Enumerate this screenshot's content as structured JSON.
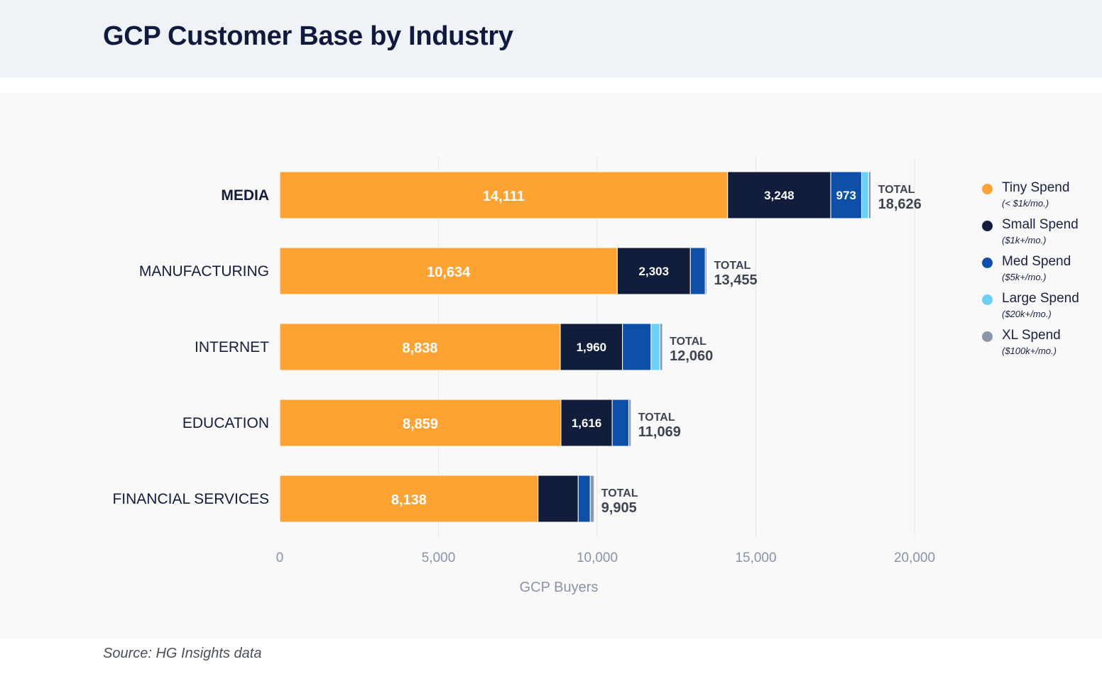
{
  "header": {
    "title": "GCP Customer Base by Industry"
  },
  "footer": {
    "source": "Source: HG Insights data"
  },
  "legend": [
    {
      "label": "Tiny Spend",
      "sub": "(< $1k/mo.)",
      "color": "#ffa234"
    },
    {
      "label": "Small Spend",
      "sub": "($1k+/mo.)",
      "color": "#121d3c"
    },
    {
      "label": "Med Spend",
      "sub": "($5k+/mo.)",
      "color": "#0e50a9"
    },
    {
      "label": "Large Spend",
      "sub": "($20k+/mo.)",
      "color": "#6dd1f4"
    },
    {
      "label": "XL Spend",
      "sub": "($100k+/mo.)",
      "color": "#8997a8"
    }
  ],
  "chart_data": {
    "type": "bar",
    "orientation": "horizontal",
    "stacked": true,
    "title": "GCP Customer Base by Industry",
    "xlabel": "GCP Buyers",
    "ylabel": "",
    "xlim": [
      0,
      20000
    ],
    "xticks": [
      0,
      5000,
      10000,
      15000,
      20000
    ],
    "xtick_labels": [
      "0",
      "5,000",
      "10,000",
      "15,000",
      "20,000"
    ],
    "grid": true,
    "legend_position": "right",
    "total_label": "TOTAL",
    "categories": [
      "MEDIA",
      "MANUFACTURING",
      "INTERNET",
      "EDUCATION",
      "FINANCIAL SERVICES"
    ],
    "totals": [
      18626,
      13455,
      12060,
      11069,
      9905
    ],
    "total_labels": [
      "18,626",
      "13,455",
      "12,060",
      "11,069",
      "9,905"
    ],
    "series": [
      {
        "name": "Tiny Spend",
        "color": "#ffa234",
        "values": [
          14111,
          10634,
          8838,
          8859,
          8138
        ],
        "labels": [
          "14,111",
          "10,634",
          "8,838",
          "8,859",
          "8,138"
        ]
      },
      {
        "name": "Small Spend",
        "color": "#121d3c",
        "values": [
          3248,
          2303,
          1960,
          1616,
          1265
        ],
        "labels": [
          "3,248",
          "2,303",
          "1,960",
          "1,616",
          ""
        ]
      },
      {
        "name": "Med Spend",
        "color": "#0e50a9",
        "values": [
          973,
          470,
          900,
          520,
          380
        ],
        "labels": [
          "973",
          "",
          "",
          "",
          ""
        ]
      },
      {
        "name": "Large Spend",
        "color": "#6dd1f4",
        "values": [
          220,
          0,
          280,
          0,
          0
        ],
        "labels": [
          "",
          "",
          "",
          "",
          ""
        ]
      },
      {
        "name": "XL Spend",
        "color": "#8997a8",
        "values": [
          74,
          48,
          82,
          74,
          122
        ],
        "labels": [
          "",
          "",
          "",
          "",
          ""
        ]
      }
    ]
  }
}
